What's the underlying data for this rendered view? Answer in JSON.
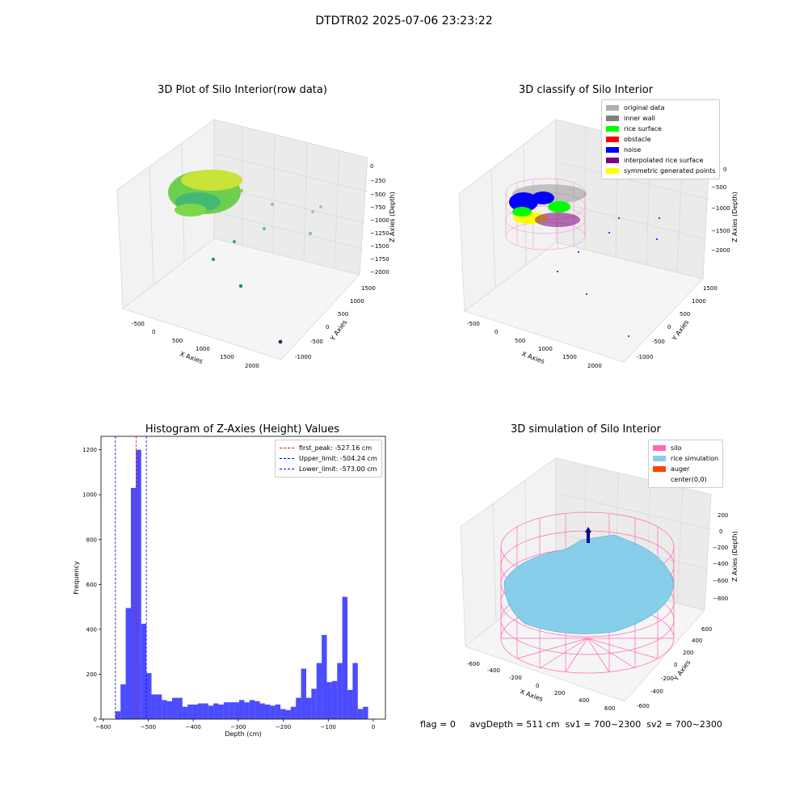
{
  "figure": {
    "suptitle": "DTDTR02 2025-07-06 23:23:22"
  },
  "panels": {
    "raw": {
      "title": "3D Plot of Silo Interior(row data)",
      "xlabel": "X Axies",
      "ylabel": "Y Axies",
      "zlabel": "Z Axies (Depth)",
      "xticks": [
        "-500",
        "0",
        "500",
        "1000",
        "1500",
        "2000"
      ],
      "yticks": [
        "-1000",
        "-500",
        "0",
        "500",
        "1000",
        "1500"
      ],
      "zticks": [
        "0",
        "−250",
        "−500",
        "−750",
        "−1000",
        "−1250",
        "−1500",
        "−1750",
        "−2000"
      ]
    },
    "classify": {
      "title": "3D classify of Silo Interior",
      "xlabel": "X Axies",
      "ylabel": "Y Axies",
      "zlabel": "Z Axies (Depth)",
      "xticks": [
        "-500",
        "0",
        "500",
        "1000",
        "1500",
        "2000"
      ],
      "yticks": [
        "-1000",
        "-500",
        "0",
        "500",
        "1000",
        "1500"
      ],
      "zticks": [
        "0",
        "−500",
        "−1000",
        "−1500",
        "−2000"
      ],
      "legend": [
        {
          "label": "original data",
          "color": "#b0b0b0"
        },
        {
          "label": "inner wall",
          "color": "#808080"
        },
        {
          "label": "rice surface",
          "color": "#00ff00"
        },
        {
          "label": "obstacle",
          "color": "#ff0000"
        },
        {
          "label": "noise",
          "color": "#0000ff"
        },
        {
          "label": "interpolated rice surface",
          "color": "#800080"
        },
        {
          "label": "symmetric generated points",
          "color": "#ffff00"
        }
      ]
    },
    "simulation": {
      "title": "3D simulation of Silo Interior",
      "xlabel": "X Axies",
      "ylabel": "Y Axies",
      "zlabel": "Z Axies (Depth)",
      "xticks": [
        "-600",
        "-400",
        "-200",
        "0",
        "200",
        "400",
        "600"
      ],
      "yticks": [
        "-600",
        "-400",
        "-200",
        "0",
        "200",
        "400",
        "600"
      ],
      "zticks": [
        "200",
        "0",
        "−200",
        "−400",
        "−600",
        "−800"
      ],
      "legend": [
        {
          "label": "silo",
          "color": "#ff69b4"
        },
        {
          "label": "rice simulation",
          "color": "#87ceeb"
        },
        {
          "label": "auger",
          "color": "#ff4500"
        },
        {
          "label": "center(0,0)",
          "color": ""
        }
      ]
    },
    "histogram": {
      "title": "Histogram of Z-Axies (Height) Values",
      "legend": [
        {
          "label": "first_peak: -527.16 cm",
          "color": "#ff0000"
        },
        {
          "label": "Upper_limit: -504.24 cm",
          "color": "#0000ff"
        },
        {
          "label": "Lower_limit: -573.00 cm",
          "color": "#0000ff"
        }
      ]
    }
  },
  "chart_data": {
    "type": "bar",
    "title": "Histogram of Z-Axies (Height) Values",
    "xlabel": "Depth (cm)",
    "ylabel": "Frequency",
    "xlim": [
      -605,
      27
    ],
    "ylim": [
      0,
      1260
    ],
    "xticks": [
      -600,
      -500,
      -400,
      -300,
      -200,
      -100,
      0
    ],
    "yticks": [
      0,
      200,
      400,
      600,
      800,
      1000,
      1200
    ],
    "bar_color": "#0000ff",
    "bin_start": -573,
    "bin_width": 11.46,
    "values": [
      35,
      155,
      495,
      1030,
      1200,
      425,
      205,
      110,
      110,
      85,
      80,
      95,
      95,
      55,
      65,
      65,
      70,
      70,
      60,
      70,
      65,
      75,
      75,
      75,
      85,
      75,
      85,
      80,
      70,
      65,
      60,
      65,
      45,
      40,
      55,
      95,
      225,
      95,
      135,
      250,
      375,
      165,
      170,
      250,
      545,
      130,
      250,
      45,
      55
    ],
    "lines": [
      {
        "name": "first_peak: -527.16 cm",
        "x": -527.16,
        "color": "#ff0000"
      },
      {
        "name": "Upper_limit: -504.24 cm",
        "x": -504.24,
        "color": "#0000ff"
      },
      {
        "name": "Lower_limit: -573.00 cm",
        "x": -573.0,
        "color": "#0000ff"
      }
    ]
  },
  "footer": {
    "flag": "flag = 0",
    "avg": "avgDepth = 511 cm",
    "sv1": "sv1 = 700~2300",
    "sv2": "sv2 = 700~2300"
  }
}
